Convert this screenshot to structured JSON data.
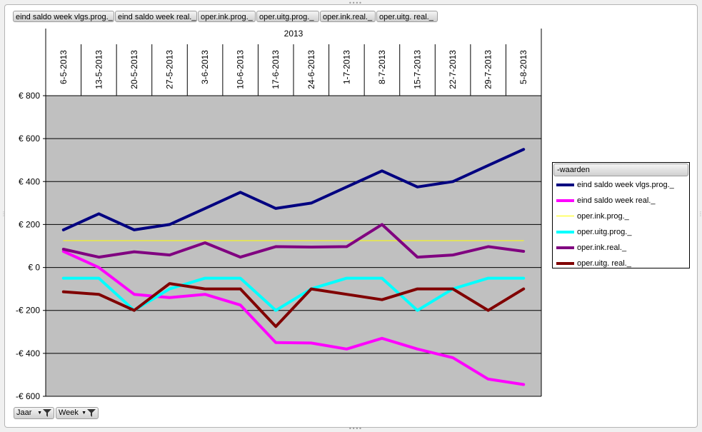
{
  "filter_buttons": [
    "eind saldo week vlgs.prog._",
    "eind saldo week real._",
    "oper.ink.prog._",
    "oper.uitg.prog._",
    "oper.ink.real._",
    "oper.uitg. real._"
  ],
  "axis_buttons": {
    "jaar": "Jaar",
    "week": "Week"
  },
  "legend": {
    "title": "-waarden"
  },
  "colors": {
    "plot_bg": "#c0c0c0",
    "grid": "#000000"
  },
  "chart_data": {
    "type": "line",
    "title": "",
    "category_group": "2013",
    "categories": [
      "6-5-2013",
      "13-5-2013",
      "20-5-2013",
      "27-5-2013",
      "3-6-2013",
      "10-6-2013",
      "17-6-2013",
      "24-6-2013",
      "1-7-2013",
      "8-7-2013",
      "15-7-2013",
      "22-7-2013",
      "29-7-2013",
      "5-8-2013"
    ],
    "ylim": [
      -600,
      800
    ],
    "yticks": [
      800,
      600,
      400,
      200,
      0,
      -200,
      -400,
      -600
    ],
    "ytick_labels": [
      "€ 800",
      "€ 600",
      "€ 400",
      "€ 200",
      "€ 0",
      "-€ 200",
      "-€ 400",
      "-€ 600"
    ],
    "grid": true,
    "legend_position": "right",
    "series": [
      {
        "name": "eind saldo week vlgs.prog._",
        "color": "#000080",
        "values": [
          175,
          250,
          175,
          200,
          275,
          350,
          275,
          300,
          375,
          450,
          375,
          400,
          475,
          550
        ]
      },
      {
        "name": "eind saldo week real._",
        "color": "#ff00ff",
        "values": [
          75,
          0,
          -125,
          -140,
          -125,
          -175,
          -350,
          -352,
          -380,
          -330,
          -380,
          -420,
          -520,
          -545
        ]
      },
      {
        "name": "oper.ink.prog._",
        "color": "#ffff00",
        "values": [
          125,
          125,
          125,
          125,
          125,
          125,
          125,
          125,
          125,
          125,
          125,
          125,
          125,
          125
        ]
      },
      {
        "name": "oper.uitg.prog._",
        "color": "#00ffff",
        "values": [
          -50,
          -50,
          -200,
          -100,
          -50,
          -50,
          -200,
          -100,
          -50,
          -50,
          -200,
          -100,
          -50,
          -50
        ]
      },
      {
        "name": "oper.ink.real._",
        "color": "#800080",
        "values": [
          85,
          48,
          73,
          58,
          115,
          48,
          97,
          95,
          97,
          200,
          48,
          58,
          97,
          75
        ]
      },
      {
        "name": "oper.uitg. real._",
        "color": "#800000",
        "values": [
          -113,
          -125,
          -200,
          -75,
          -100,
          -100,
          -275,
          -100,
          -125,
          -150,
          -100,
          -100,
          -200,
          -100
        ]
      }
    ]
  }
}
